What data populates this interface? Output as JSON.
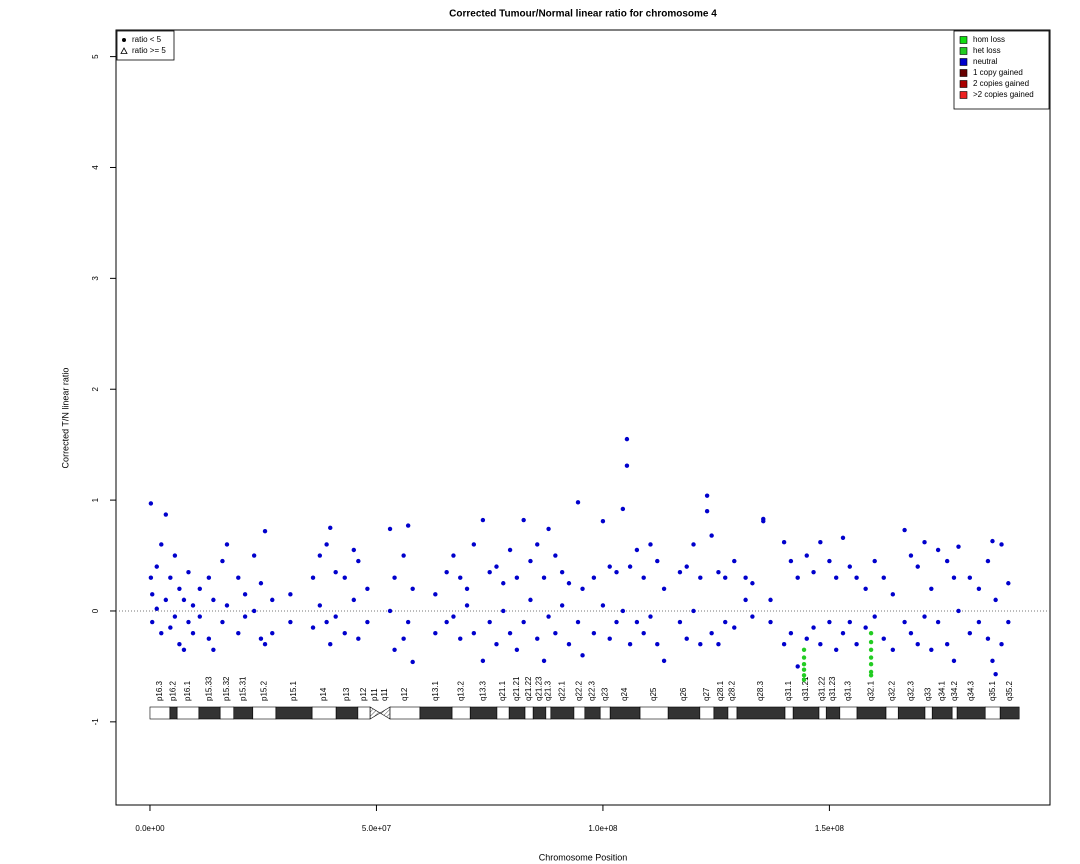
{
  "chart_data": {
    "type": "scatter",
    "title": "Corrected Tumour/Normal linear ratio for chromosome  4",
    "x_label": "Chromosome Position",
    "y_label": "Corrected T/N linear ratio",
    "xlim": [
      -7500000,
      198700000
    ],
    "ylim": [
      -1.75,
      5.24
    ],
    "xticks": [
      {
        "value": 0,
        "label": "0.0e+00"
      },
      {
        "value": 50000000,
        "label": "5.0e+07"
      },
      {
        "value": 100000000,
        "label": "1.0e+08"
      },
      {
        "value": 150000000,
        "label": "1.5e+08"
      }
    ],
    "yticks": [
      -1,
      0,
      1,
      2,
      3,
      4,
      5
    ],
    "reference_line": 0,
    "legend_position": "top-right",
    "shape_legend_position": "top-left",
    "shape_legend": [
      "ratio < 5",
      "ratio >= 5"
    ],
    "series": [
      {
        "name": "hom loss",
        "color": "#11dd11",
        "x": [],
        "values": []
      },
      {
        "name": "het loss",
        "color": "#22cc22",
        "x": [
          144400000,
          144400000,
          144400000,
          144400000,
          144400000,
          144400000,
          159200000,
          159200000,
          159200000,
          159200000,
          159200000,
          159200000,
          159200000
        ],
        "values": [
          -0.35,
          -0.42,
          -0.48,
          -0.53,
          -0.58,
          -0.62,
          -0.2,
          -0.28,
          -0.35,
          -0.42,
          -0.48,
          -0.55,
          -0.58
        ]
      },
      {
        "name": "neutral",
        "color": "#0000cc",
        "x": [
          200000,
          200000,
          500000,
          500000,
          1500000,
          1500000,
          2500000,
          2500000,
          3500000,
          3500000,
          4500000,
          4500000,
          5500000,
          5500000,
          6500000,
          6500000,
          7500000,
          7500000,
          8500000,
          8500000,
          9500000,
          9500000,
          11000000,
          11000000,
          13000000,
          13000000,
          14000000,
          14000000,
          16000000,
          16000000,
          17000000,
          17000000,
          19500000,
          19500000,
          21000000,
          21000000,
          23000000,
          23000000,
          24500000,
          24500000,
          25400000,
          25400000,
          27000000,
          27000000,
          31000000,
          31000000,
          36000000,
          36000000,
          37500000,
          37500000,
          39000000,
          39000000,
          39800000,
          39800000,
          41000000,
          41000000,
          43000000,
          43000000,
          45000000,
          45000000,
          46000000,
          46000000,
          48000000,
          48000000,
          53000000,
          53000000,
          54000000,
          54000000,
          56000000,
          56000000,
          57000000,
          57000000,
          58000000,
          58000000,
          63000000,
          63000000,
          65500000,
          65500000,
          67000000,
          67000000,
          68500000,
          68500000,
          70000000,
          70000000,
          71500000,
          71500000,
          73500000,
          73500000,
          75000000,
          75000000,
          76500000,
          76500000,
          78000000,
          78000000,
          79500000,
          79500000,
          81000000,
          81000000,
          82500000,
          82500000,
          84000000,
          84000000,
          85500000,
          85500000,
          87000000,
          87000000,
          88000000,
          88000000,
          89500000,
          89500000,
          91000000,
          91000000,
          92500000,
          92500000,
          94500000,
          94500000,
          95500000,
          95500000,
          98000000,
          98000000,
          100000000,
          100000000,
          101500000,
          101500000,
          103000000,
          103000000,
          104400000,
          104400000,
          105300000,
          105300000,
          106000000,
          106000000,
          107500000,
          107500000,
          109000000,
          109000000,
          110500000,
          110500000,
          112000000,
          112000000,
          113500000,
          113500000,
          117000000,
          117000000,
          118500000,
          118500000,
          120000000,
          120000000,
          121500000,
          121500000,
          123000000,
          123000000,
          124000000,
          124000000,
          125500000,
          125500000,
          127000000,
          127000000,
          129000000,
          129000000,
          131500000,
          131500000,
          133000000,
          133000000,
          135400000,
          135400000,
          137000000,
          137000000,
          140000000,
          140000000,
          141500000,
          141500000,
          143000000,
          143000000,
          145000000,
          145000000,
          146500000,
          146500000,
          148000000,
          148000000,
          150000000,
          150000000,
          151500000,
          151500000,
          153000000,
          153000000,
          154500000,
          154500000,
          156000000,
          156000000,
          158000000,
          158000000,
          160000000,
          160000000,
          162000000,
          162000000,
          164000000,
          164000000,
          166600000,
          166600000,
          168000000,
          168000000,
          169500000,
          169500000,
          171000000,
          171000000,
          172500000,
          172500000,
          174000000,
          174000000,
          176000000,
          176000000,
          177500000,
          177500000,
          178500000,
          178500000,
          181000000,
          181000000,
          183000000,
          183000000,
          185000000,
          185000000,
          186000000,
          186000000,
          186700000,
          186700000,
          188000000,
          188000000,
          189500000,
          189500000
        ],
        "values": [
          0.97,
          0.3,
          0.15,
          -0.1,
          0.4,
          0.02,
          0.6,
          -0.2,
          0.87,
          0.1,
          0.3,
          -0.15,
          0.5,
          -0.05,
          0.2,
          -0.3,
          0.1,
          -0.35,
          0.35,
          -0.1,
          0.05,
          -0.2,
          0.2,
          -0.05,
          0.3,
          -0.25,
          0.1,
          -0.35,
          0.45,
          -0.1,
          0.6,
          0.05,
          0.3,
          -0.2,
          0.15,
          -0.05,
          0.5,
          0,
          0.25,
          -0.25,
          0.72,
          -0.3,
          0.1,
          -0.2,
          0.15,
          -0.1,
          0.3,
          -0.15,
          0.5,
          0.05,
          0.6,
          -0.1,
          0.75,
          -0.3,
          0.35,
          -0.05,
          0.3,
          -0.2,
          0.55,
          0.1,
          0.45,
          -0.25,
          0.2,
          -0.1,
          0.74,
          0,
          0.3,
          -0.35,
          0.5,
          -0.25,
          0.77,
          -0.1,
          -0.46,
          0.2,
          0.15,
          -0.2,
          0.35,
          -0.1,
          0.5,
          -0.05,
          0.3,
          -0.25,
          0.2,
          0.05,
          0.6,
          -0.2,
          0.82,
          -0.45,
          0.35,
          -0.1,
          0.4,
          -0.3,
          0.25,
          0,
          0.55,
          -0.2,
          0.3,
          -0.35,
          0.82,
          -0.1,
          0.45,
          0.1,
          0.6,
          -0.25,
          0.3,
          -0.45,
          0.74,
          -0.05,
          0.5,
          -0.2,
          0.35,
          0.05,
          0.25,
          -0.3,
          0.98,
          -0.1,
          0.2,
          -0.4,
          0.3,
          -0.2,
          0.81,
          0.05,
          0.4,
          -0.25,
          0.35,
          -0.1,
          0.92,
          0,
          1.55,
          1.31,
          0.4,
          -0.3,
          0.55,
          -0.1,
          0.3,
          -0.2,
          0.6,
          -0.05,
          0.45,
          -0.3,
          0.2,
          -0.45,
          0.35,
          -0.1,
          0.4,
          -0.25,
          0.6,
          0,
          0.3,
          -0.3,
          0.9,
          1.04,
          0.68,
          -0.2,
          0.35,
          -0.3,
          0.3,
          -0.1,
          0.45,
          -0.15,
          0.3,
          0.1,
          0.25,
          -0.05,
          0.83,
          0.81,
          0.1,
          -0.1,
          0.62,
          -0.3,
          0.45,
          -0.2,
          0.3,
          -0.5,
          0.5,
          -0.25,
          0.35,
          -0.15,
          0.62,
          -0.3,
          0.45,
          -0.1,
          0.3,
          -0.35,
          0.66,
          -0.2,
          0.4,
          -0.1,
          0.3,
          -0.3,
          0.2,
          -0.15,
          0.45,
          -0.05,
          0.3,
          -0.25,
          0.15,
          -0.35,
          0.73,
          -0.1,
          0.5,
          -0.2,
          0.4,
          -0.3,
          0.62,
          -0.05,
          0.2,
          -0.35,
          0.55,
          -0.1,
          0.45,
          -0.3,
          0.3,
          -0.45,
          0.58,
          0,
          0.3,
          -0.2,
          0.2,
          -0.1,
          0.45,
          -0.25,
          0.63,
          -0.45,
          -0.57,
          0.1,
          0.6,
          -0.3,
          0.25,
          -0.1
        ]
      },
      {
        "name": "1 copy gained",
        "color": "#660000",
        "x": [],
        "values": []
      },
      {
        "name": "2 copies gained",
        "color": "#aa0000",
        "x": [],
        "values": []
      },
      {
        "name": ">2 copies gained",
        "color": "#ee2222",
        "x": [],
        "values": []
      }
    ],
    "bands": [
      {
        "name": "p16.3",
        "start": 0,
        "end": 4400000,
        "stain": "gneg"
      },
      {
        "name": "p16.2",
        "start": 4400000,
        "end": 6000000,
        "stain": "gpos"
      },
      {
        "name": "p16.1",
        "start": 6000000,
        "end": 10800000,
        "stain": "gneg"
      },
      {
        "name": "p15.33",
        "start": 10800000,
        "end": 15500000,
        "stain": "gpos"
      },
      {
        "name": "p15.32",
        "start": 15500000,
        "end": 18500000,
        "stain": "gneg"
      },
      {
        "name": "p15.31",
        "start": 18500000,
        "end": 22700000,
        "stain": "gpos"
      },
      {
        "name": "p15.2",
        "start": 22700000,
        "end": 27800000,
        "stain": "gneg"
      },
      {
        "name": "p15.1",
        "start": 27800000,
        "end": 35800000,
        "stain": "gpos"
      },
      {
        "name": "p14",
        "start": 35800000,
        "end": 41100000,
        "stain": "gneg"
      },
      {
        "name": "p13",
        "start": 41100000,
        "end": 45900000,
        "stain": "gpos"
      },
      {
        "name": "p12",
        "start": 45900000,
        "end": 48600000,
        "stain": "gneg"
      },
      {
        "name": "p11",
        "start": 48600000,
        "end": 50800000,
        "stain": "acen"
      },
      {
        "name": "q11",
        "start": 50800000,
        "end": 53000000,
        "stain": "acen"
      },
      {
        "name": "q12",
        "start": 53000000,
        "end": 59600000,
        "stain": "gneg"
      },
      {
        "name": "q13.1",
        "start": 59600000,
        "end": 66700000,
        "stain": "gpos"
      },
      {
        "name": "q13.2",
        "start": 66700000,
        "end": 70700000,
        "stain": "gneg"
      },
      {
        "name": "q13.3",
        "start": 70700000,
        "end": 76600000,
        "stain": "gpos"
      },
      {
        "name": "q21.1",
        "start": 76600000,
        "end": 79300000,
        "stain": "gneg"
      },
      {
        "name": "q21.21",
        "start": 79300000,
        "end": 82800000,
        "stain": "gpos"
      },
      {
        "name": "q21.22",
        "start": 82800000,
        "end": 84600000,
        "stain": "gneg"
      },
      {
        "name": "q21.23",
        "start": 84600000,
        "end": 87400000,
        "stain": "gpos"
      },
      {
        "name": "q21.3",
        "start": 87400000,
        "end": 88500000,
        "stain": "gneg"
      },
      {
        "name": "q22.1",
        "start": 88500000,
        "end": 93600000,
        "stain": "gpos"
      },
      {
        "name": "q22.2",
        "start": 93600000,
        "end": 96000000,
        "stain": "gneg"
      },
      {
        "name": "q22.3",
        "start": 96000000,
        "end": 99400000,
        "stain": "gpos"
      },
      {
        "name": "q23",
        "start": 99400000,
        "end": 101600000,
        "stain": "gneg"
      },
      {
        "name": "q24",
        "start": 101600000,
        "end": 108200000,
        "stain": "gpos"
      },
      {
        "name": "q25",
        "start": 108200000,
        "end": 114400000,
        "stain": "gneg"
      },
      {
        "name": "q26",
        "start": 114400000,
        "end": 121400000,
        "stain": "gpos"
      },
      {
        "name": "q27",
        "start": 121400000,
        "end": 124500000,
        "stain": "gneg"
      },
      {
        "name": "q28.1",
        "start": 124500000,
        "end": 127600000,
        "stain": "gpos"
      },
      {
        "name": "q28.2",
        "start": 127600000,
        "end": 129600000,
        "stain": "gneg"
      },
      {
        "name": "q28.3",
        "start": 129600000,
        "end": 140200000,
        "stain": "gpos"
      },
      {
        "name": "q31.1",
        "start": 140200000,
        "end": 142000000,
        "stain": "gneg"
      },
      {
        "name": "q31.21",
        "start": 142000000,
        "end": 147700000,
        "stain": "gpos"
      },
      {
        "name": "q31.22",
        "start": 147700000,
        "end": 149300000,
        "stain": "gneg"
      },
      {
        "name": "q31.23",
        "start": 149300000,
        "end": 152300000,
        "stain": "gpos"
      },
      {
        "name": "q31.3",
        "start": 152300000,
        "end": 156100000,
        "stain": "gneg"
      },
      {
        "name": "q32.1",
        "start": 156100000,
        "end": 162500000,
        "stain": "gpos"
      },
      {
        "name": "q32.2",
        "start": 162500000,
        "end": 165200000,
        "stain": "gneg"
      },
      {
        "name": "q32.3",
        "start": 165200000,
        "end": 171100000,
        "stain": "gpos"
      },
      {
        "name": "q33",
        "start": 171100000,
        "end": 172700000,
        "stain": "gneg"
      },
      {
        "name": "q34.1",
        "start": 172700000,
        "end": 177100000,
        "stain": "gpos"
      },
      {
        "name": "q34.2",
        "start": 177100000,
        "end": 178200000,
        "stain": "gneg"
      },
      {
        "name": "q34.3",
        "start": 178200000,
        "end": 184400000,
        "stain": "gpos"
      },
      {
        "name": "q35.1",
        "start": 184400000,
        "end": 187700000,
        "stain": "gneg"
      },
      {
        "name": "q35.2",
        "start": 187700000,
        "end": 191900000,
        "stain": "gpos"
      }
    ]
  }
}
